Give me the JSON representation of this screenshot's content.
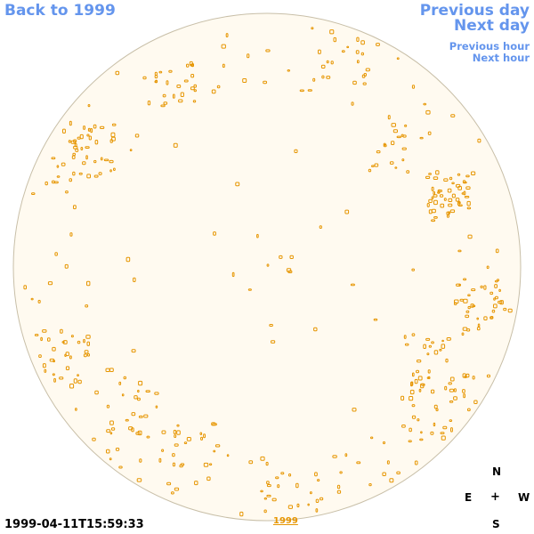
{
  "nav": {
    "back_label": "Back to 1999",
    "previous_day_label": "Previous day",
    "next_day_label": "Next day",
    "previous_hour_label": "Previous hour",
    "next_hour_label": "Next hour"
  },
  "image": {
    "timestamp": "1999-04-11T15:59:33",
    "year_link_label": "1999",
    "disk_fill_color": "#fffaf0",
    "disk_edge_color": "#c8bfa8",
    "feature_color": "#e69500"
  },
  "compass": {
    "north": "N",
    "east": "E",
    "center": "+",
    "west": "W",
    "south": "S"
  }
}
